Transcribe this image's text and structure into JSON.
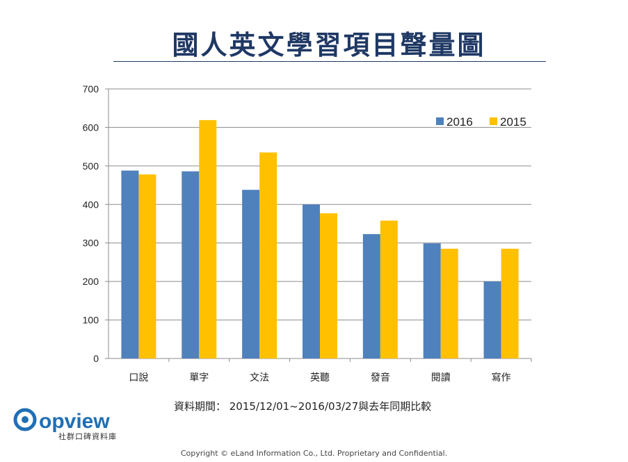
{
  "page": {
    "title": "國人英文學習項目聲量圖",
    "period_text": "資料期間： 2015/12/01~2016/03/27與去年同期比較",
    "logo_text": "opview",
    "logo_tagline": "社群口碑資料庫",
    "copyright": "Copyright © eLand Information Co., Ltd. Proprietary and Confidential."
  },
  "chart_data": {
    "type": "bar",
    "title": "國人英文學習項目聲量圖",
    "xlabel": "",
    "ylabel": "",
    "categories": [
      "口說",
      "單字",
      "文法",
      "英聽",
      "發音",
      "閱讀",
      "寫作"
    ],
    "series": [
      {
        "name": "2016",
        "color": "#4f81bd",
        "values": [
          488,
          486,
          438,
          400,
          323,
          299,
          200
        ]
      },
      {
        "name": "2015",
        "color": "#ffc000",
        "values": [
          478,
          619,
          535,
          377,
          358,
          285,
          285
        ]
      }
    ],
    "ylim": [
      0,
      700
    ],
    "yticks": [
      0,
      100,
      200,
      300,
      400,
      500,
      600,
      700
    ],
    "grid": true,
    "legend": "top-right"
  }
}
